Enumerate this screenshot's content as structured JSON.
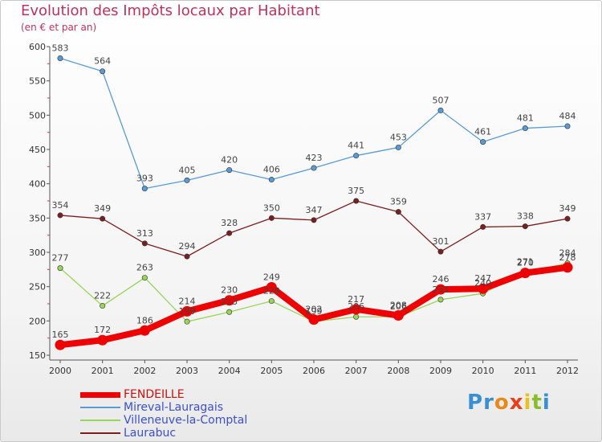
{
  "header": {
    "title": "Evolution des Impôts locaux par Habitant",
    "subtitle": "(en € et par an)"
  },
  "logo": {
    "text": "Proxiti",
    "letters": [
      "P",
      "r",
      "o",
      "x",
      "i",
      "t",
      "i"
    ],
    "colors": [
      "#3a8fd1",
      "#3a8fd1",
      "#e88a1a",
      "#e8401a",
      "#e8c21a",
      "#8abd2a",
      "#3a8fd1"
    ]
  },
  "chart_data": {
    "type": "line",
    "title": "Evolution des Impôts locaux par Habitant",
    "subtitle": "(en € et par an)",
    "x": [
      "2000",
      "2001",
      "2002",
      "2003",
      "2004",
      "2005",
      "2006",
      "2007",
      "2008",
      "2009",
      "2010",
      "2011",
      "2012"
    ],
    "ylim": [
      150,
      600
    ],
    "yticks": [
      150,
      200,
      250,
      300,
      350,
      400,
      450,
      500,
      550,
      600
    ],
    "grid": false,
    "legend_position": "bottom-left",
    "series": [
      {
        "name": "FENDEILLE",
        "color": "#ee0000",
        "highlight": true,
        "values": [
          165,
          172,
          186,
          214,
          230,
          249,
          202,
          217,
          208,
          246,
          247,
          270,
          278
        ]
      },
      {
        "name": "Mireval-Lauragais",
        "color": "#5b9bd5",
        "values": [
          583,
          564,
          393,
          405,
          420,
          406,
          423,
          441,
          453,
          507,
          461,
          481,
          484
        ]
      },
      {
        "name": "Villeneuve-la-Comptal",
        "color": "#99d45b",
        "values": [
          277,
          222,
          263,
          199,
          213,
          229,
          199,
          206,
          206,
          231,
          240,
          271,
          284
        ]
      },
      {
        "name": "Laurabuc",
        "color": "#7a1f1f",
        "values": [
          354,
          349,
          313,
          294,
          328,
          350,
          347,
          375,
          359,
          301,
          337,
          338,
          349
        ]
      }
    ]
  }
}
